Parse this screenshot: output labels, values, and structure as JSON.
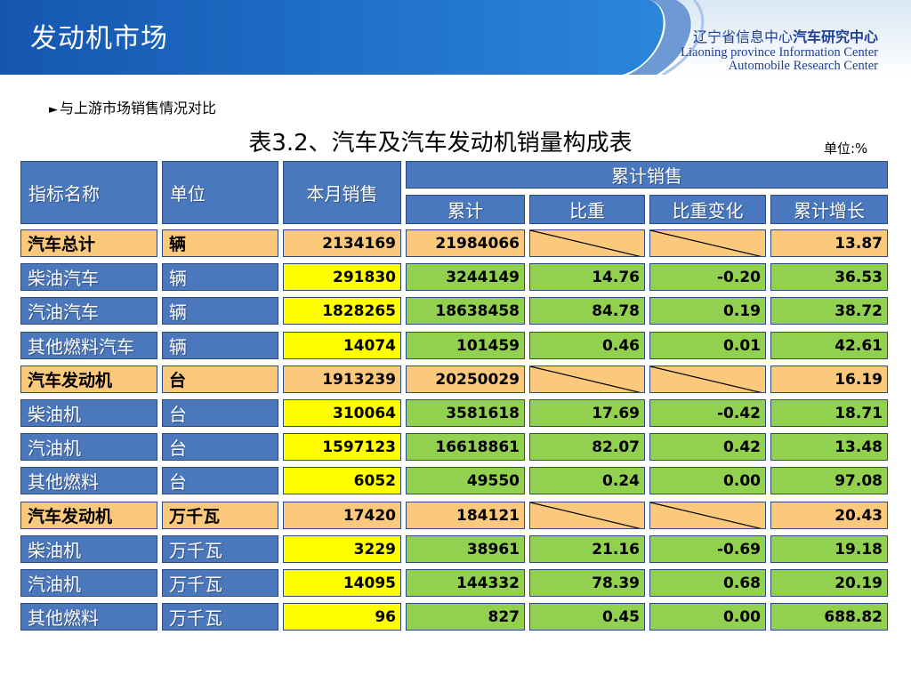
{
  "header": {
    "title": "发动机市场",
    "logo_cn_part1": "辽宁省信息中心",
    "logo_cn_part2": "汽车研究中心",
    "logo_en_line1": "Liaoning province Information Center",
    "logo_en_line2": "Automobile Research Center"
  },
  "subheading": "与上游市场销售情况对比",
  "table_title": "表3.2、汽车及汽车发动机销量构成表",
  "unit_note": "单位:%",
  "columns": {
    "name": "指标名称",
    "unit": "单位",
    "month": "本月销售",
    "cumulative_group": "累计销售",
    "cumulative": "累计",
    "share": "比重",
    "share_change": "比重变化",
    "growth": "累计增长"
  },
  "rows": [
    {
      "name": "汽车总计",
      "unit": "辆",
      "month": "2134169",
      "cumulative": "21984066",
      "share": "",
      "change": "",
      "growth": "13.87",
      "kind": "total"
    },
    {
      "name": "柴油汽车",
      "unit": "辆",
      "month": "291830",
      "cumulative": "3244149",
      "share": "14.76",
      "change": "-0.20",
      "growth": "36.53",
      "kind": "item"
    },
    {
      "name": "汽油汽车",
      "unit": "辆",
      "month": "1828265",
      "cumulative": "18638458",
      "share": "84.78",
      "change": "0.19",
      "growth": "38.72",
      "kind": "item"
    },
    {
      "name": "其他燃料汽车",
      "unit": "辆",
      "month": "14074",
      "cumulative": "101459",
      "share": "0.46",
      "change": "0.01",
      "growth": "42.61",
      "kind": "item"
    },
    {
      "name": "汽车发动机",
      "unit": "台",
      "month": "1913239",
      "cumulative": "20250029",
      "share": "",
      "change": "",
      "growth": "16.19",
      "kind": "total"
    },
    {
      "name": "柴油机",
      "unit": "台",
      "month": "310064",
      "cumulative": "3581618",
      "share": "17.69",
      "change": "-0.42",
      "growth": "18.71",
      "kind": "item"
    },
    {
      "name": "汽油机",
      "unit": "台",
      "month": "1597123",
      "cumulative": "16618861",
      "share": "82.07",
      "change": "0.42",
      "growth": "13.48",
      "kind": "item"
    },
    {
      "name": "其他燃料",
      "unit": "台",
      "month": "6052",
      "cumulative": "49550",
      "share": "0.24",
      "change": "0.00",
      "growth": "97.08",
      "kind": "item"
    },
    {
      "name": "汽车发动机",
      "unit": "万千瓦",
      "month": "17420",
      "cumulative": "184121",
      "share": "",
      "change": "",
      "growth": "20.43",
      "kind": "total"
    },
    {
      "name": "柴油机",
      "unit": "万千瓦",
      "month": "3229",
      "cumulative": "38961",
      "share": "21.16",
      "change": "-0.69",
      "growth": "19.18",
      "kind": "item"
    },
    {
      "name": "汽油机",
      "unit": "万千瓦",
      "month": "14095",
      "cumulative": "144332",
      "share": "78.39",
      "change": "0.68",
      "growth": "20.19",
      "kind": "item"
    },
    {
      "name": "其他燃料",
      "unit": "万千瓦",
      "month": "96",
      "cumulative": "827",
      "share": "0.45",
      "change": "0.00",
      "growth": "688.82",
      "kind": "item"
    }
  ],
  "colors": {
    "header_blue": "#4a78be",
    "orange": "#fbc97b",
    "yellow": "#ffff00",
    "green": "#92d050",
    "title_bar": "#1d63b7"
  }
}
